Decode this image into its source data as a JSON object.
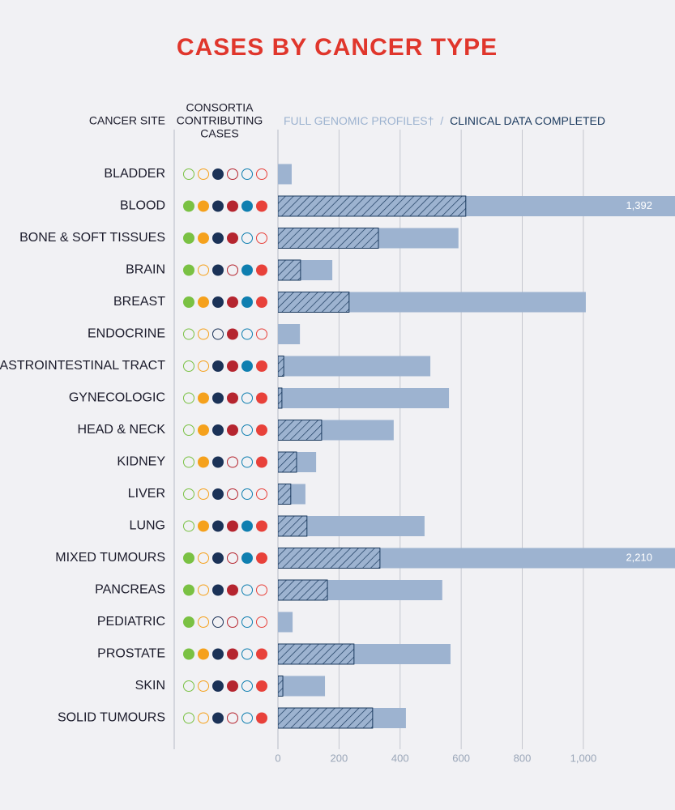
{
  "chart_data": {
    "type": "bar",
    "orientation": "horizontal",
    "title": "CASES BY CANCER TYPE",
    "category_header": "CANCER SITE",
    "consortia_header": [
      "CONSORTIA",
      "CONTRIBUTING",
      "CASES"
    ],
    "legend_separator": "/",
    "categories": [
      "BLADDER",
      "BLOOD",
      "BONE & SOFT TISSUES",
      "BRAIN",
      "BREAST",
      "ENDOCRINE",
      "GASTROINTESTINAL TRACT",
      "GYNECOLOGIC",
      "HEAD & NECK",
      "KIDNEY",
      "LIVER",
      "LUNG",
      "MIXED TUMOURS",
      "PANCREAS",
      "PEDIATRIC",
      "PROSTATE",
      "SKIN",
      "SOLID TUMOURS"
    ],
    "series": [
      {
        "name": "FULL GENOMIC PROFILES†",
        "color": "#9db3d0",
        "values": [
          45,
          1392,
          591,
          178,
          1008,
          72,
          499,
          560,
          379,
          125,
          90,
          480,
          2210,
          538,
          48,
          565,
          154,
          419
        ],
        "value_labels": [
          null,
          "1,392",
          null,
          null,
          null,
          null,
          null,
          null,
          null,
          null,
          null,
          null,
          "2,210",
          null,
          null,
          null,
          null,
          null
        ]
      },
      {
        "name": "CLINICAL DATA COMPLETED",
        "color": "#1b3a5e",
        "hatched": true,
        "values": [
          0,
          615,
          329,
          74,
          233,
          0,
          19,
          13,
          143,
          61,
          42,
          95,
          334,
          162,
          0,
          249,
          16,
          310
        ]
      }
    ],
    "consortia_colors": [
      "#7ac143",
      "#f5a11c",
      "#1b3257",
      "#b5252f",
      "#0f7fb0",
      "#e8413a"
    ],
    "consortia": [
      [
        false,
        false,
        true,
        false,
        false,
        false
      ],
      [
        true,
        true,
        true,
        true,
        true,
        true
      ],
      [
        true,
        true,
        true,
        true,
        false,
        false
      ],
      [
        true,
        false,
        true,
        false,
        true,
        true
      ],
      [
        true,
        true,
        true,
        true,
        true,
        true
      ],
      [
        false,
        false,
        false,
        true,
        false,
        false
      ],
      [
        false,
        false,
        true,
        true,
        true,
        true
      ],
      [
        false,
        true,
        true,
        true,
        false,
        true
      ],
      [
        false,
        true,
        true,
        true,
        false,
        true
      ],
      [
        false,
        true,
        true,
        false,
        false,
        true
      ],
      [
        false,
        false,
        true,
        false,
        false,
        false
      ],
      [
        false,
        true,
        true,
        true,
        true,
        true
      ],
      [
        true,
        false,
        true,
        false,
        true,
        true
      ],
      [
        true,
        false,
        true,
        true,
        false,
        false
      ],
      [
        true,
        false,
        false,
        false,
        false,
        false
      ],
      [
        true,
        true,
        true,
        true,
        false,
        true
      ],
      [
        false,
        false,
        true,
        true,
        false,
        true
      ],
      [
        false,
        false,
        true,
        false,
        false,
        true
      ]
    ],
    "xlim": [
      0,
      1300
    ],
    "xticks": [
      0,
      200,
      400,
      600,
      800,
      {
        "value": 1000,
        "label": "1,000"
      }
    ],
    "grid": true
  }
}
